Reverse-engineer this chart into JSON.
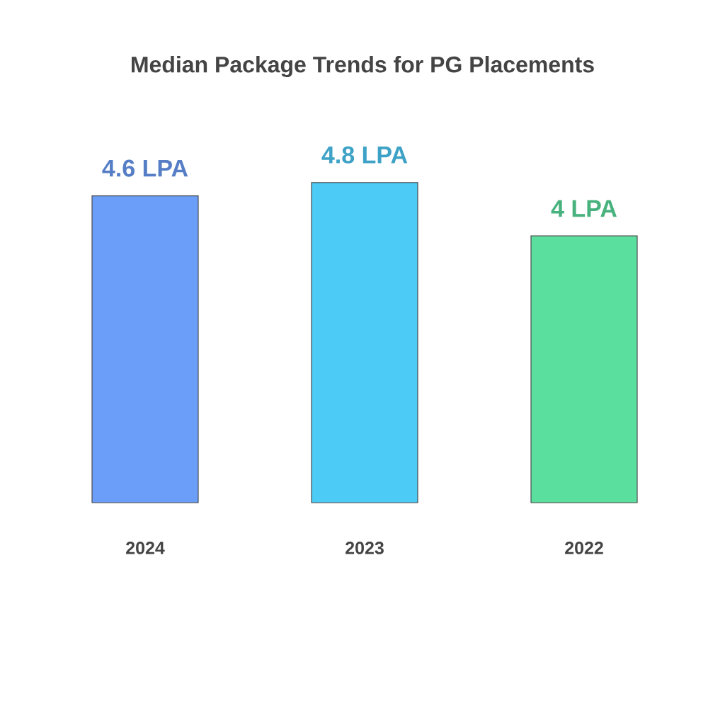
{
  "chart_data": {
    "type": "bar",
    "title": "Median Package Trends for PG Placements",
    "categories": [
      "2024",
      "2023",
      "2022"
    ],
    "values": [
      4.6,
      4.8,
      4
    ],
    "colors": [
      "#6a9ef8",
      "#4ccbf7",
      "#5adf9e"
    ],
    "value_labels": [
      "4.6 LPA",
      "4.8 LPA",
      "4 LPA"
    ]
  }
}
